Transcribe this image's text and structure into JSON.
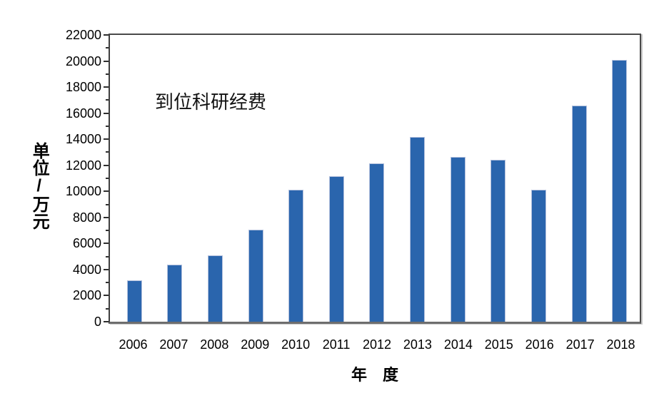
{
  "chart_data": {
    "type": "bar",
    "title_annotation": "到位科研经费",
    "xlabel": "年　度",
    "ylabel": "单位/万元",
    "categories": [
      "2006",
      "2007",
      "2008",
      "2009",
      "2010",
      "2011",
      "2012",
      "2013",
      "2014",
      "2015",
      "2016",
      "2017",
      "2018"
    ],
    "values": [
      3150,
      4400,
      5100,
      7050,
      10150,
      11150,
      12150,
      14150,
      12650,
      12450,
      10150,
      16600,
      20100
    ],
    "ylim": [
      0,
      22000
    ],
    "y_major_step": 2000,
    "y_minor_step": 1000,
    "y_tick_labels": [
      "0",
      "2000",
      "4000",
      "6000",
      "8000",
      "10000",
      "12000",
      "14000",
      "16000",
      "18000",
      "20000",
      "22000"
    ],
    "grid": "off",
    "legend": "none"
  },
  "colors": {
    "bar_fill": "#2a65ad",
    "bar_edge": "#b3c0dd",
    "tick_color": "#2e2e2e",
    "border_dark": "#4a4a4a",
    "baseline_gray": "#6e6e6e",
    "text": "#000000",
    "background": "#ffffff"
  }
}
